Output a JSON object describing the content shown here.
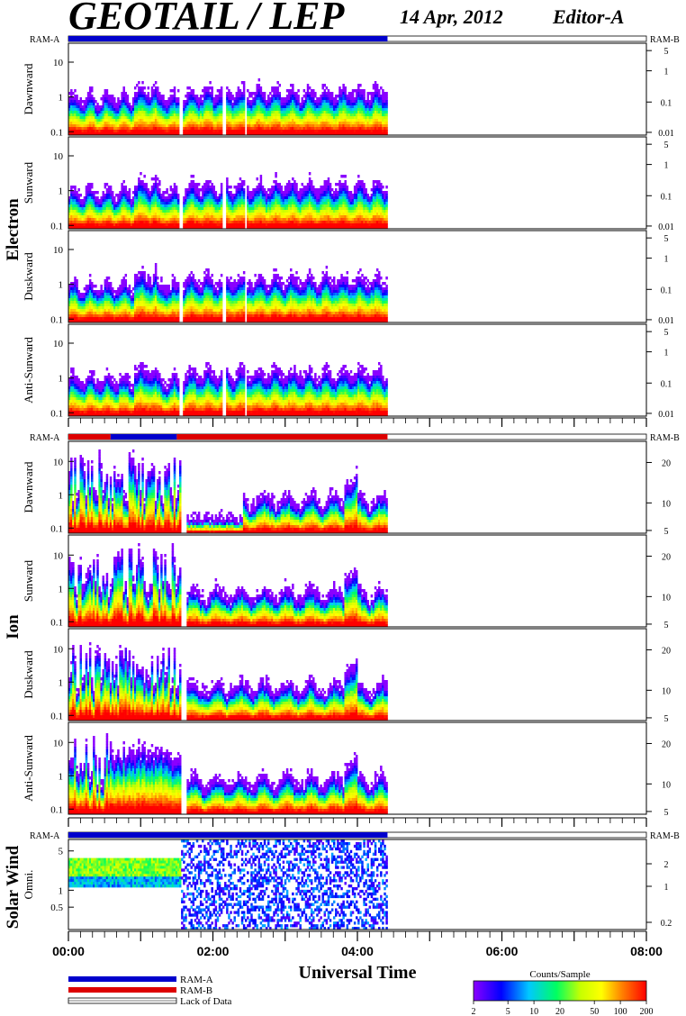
{
  "header": {
    "title": "GEOTAIL / LEP",
    "date": "14 Apr, 2012",
    "editor": "Editor-A"
  },
  "bars": {
    "ram_a": "RAM-A",
    "ram_b": "RAM-B"
  },
  "groups": [
    {
      "name": "Electron"
    },
    {
      "name": "Ion"
    },
    {
      "name": "Solar Wind"
    }
  ],
  "panels": [
    {
      "label": "Dawnward",
      "left_ticks": [
        "10",
        "1",
        "0.1"
      ],
      "right_ticks": [
        "5",
        "1",
        "0.1",
        "0.01"
      ]
    },
    {
      "label": "Sunward",
      "left_ticks": [
        "10",
        "1",
        "0.1"
      ],
      "right_ticks": [
        "5",
        "1",
        "0.1",
        "0.01"
      ]
    },
    {
      "label": "Duskward",
      "left_ticks": [
        "10",
        "1",
        "0.1"
      ],
      "right_ticks": [
        "5",
        "1",
        "0.1",
        "0.01"
      ]
    },
    {
      "label": "Anti-Sunward",
      "left_ticks": [
        "10",
        "1",
        "0.1"
      ],
      "right_ticks": [
        "5",
        "1",
        "0.1",
        "0.01"
      ]
    },
    {
      "label": "Dawnward",
      "left_ticks": [
        "10",
        "1",
        "0.1"
      ],
      "right_ticks": [
        "20",
        "10",
        "5"
      ]
    },
    {
      "label": "Sunward",
      "left_ticks": [
        "10",
        "1",
        "0.1"
      ],
      "right_ticks": [
        "20",
        "10",
        "5"
      ]
    },
    {
      "label": "Duskward",
      "left_ticks": [
        "10",
        "1",
        "0.1"
      ],
      "right_ticks": [
        "20",
        "10",
        "5"
      ]
    },
    {
      "label": "Anti-Sunward",
      "left_ticks": [
        "10",
        "1",
        "0.1"
      ],
      "right_ticks": [
        "20",
        "10",
        "5"
      ]
    },
    {
      "label": "Omni.",
      "left_ticks": [
        "5",
        "1",
        "0.5"
      ],
      "right_ticks": [
        "2",
        "1",
        "0.2"
      ]
    }
  ],
  "xaxis": {
    "ticks": [
      "00:00",
      "02:00",
      "04:00",
      "06:00",
      "08:00"
    ],
    "label": "Universal Time"
  },
  "legend": {
    "items": [
      "RAM-A",
      "RAM-B",
      "Lack of Data"
    ],
    "colors": [
      "#0000cc",
      "#dd0000",
      "#ffffff"
    ]
  },
  "colorbar": {
    "title": "Counts/Sample",
    "ticks": [
      "2",
      "5",
      "10",
      "20",
      "50",
      "100",
      "200"
    ],
    "stops": [
      "#8a00ff",
      "#0000ff",
      "#00c8ff",
      "#00ff60",
      "#c8ff00",
      "#ffff00",
      "#ff8000",
      "#ff0000"
    ]
  },
  "chart_data": {
    "type": "heatmap",
    "title": "GEOTAIL / LEP",
    "xlabel": "Universal Time",
    "xlim": [
      "00:00",
      "08:00"
    ],
    "data_end": "04:25",
    "colorbar_label": "Counts/Sample",
    "colorbar_range": [
      2,
      200
    ],
    "electron_left_range": [
      0.08,
      35
    ],
    "ion_left_range": [
      0.07,
      40
    ],
    "solar_wind_left_range": [
      0.2,
      8
    ],
    "ram_mode_bars": [
      {
        "group": "Electron",
        "segments": [
          {
            "from": "00:00",
            "to": "04:25",
            "mode": "RAM-A"
          }
        ]
      },
      {
        "group": "Ion",
        "segments": [
          {
            "from": "00:00",
            "to": "00:35",
            "mode": "RAM-B"
          },
          {
            "from": "00:35",
            "to": "01:30",
            "mode": "RAM-A"
          },
          {
            "from": "01:30",
            "to": "04:25",
            "mode": "RAM-B"
          }
        ]
      },
      {
        "group": "Solar Wind",
        "segments": [
          {
            "from": "00:00",
            "to": "04:25",
            "mode": "RAM-A"
          }
        ]
      }
    ]
  }
}
